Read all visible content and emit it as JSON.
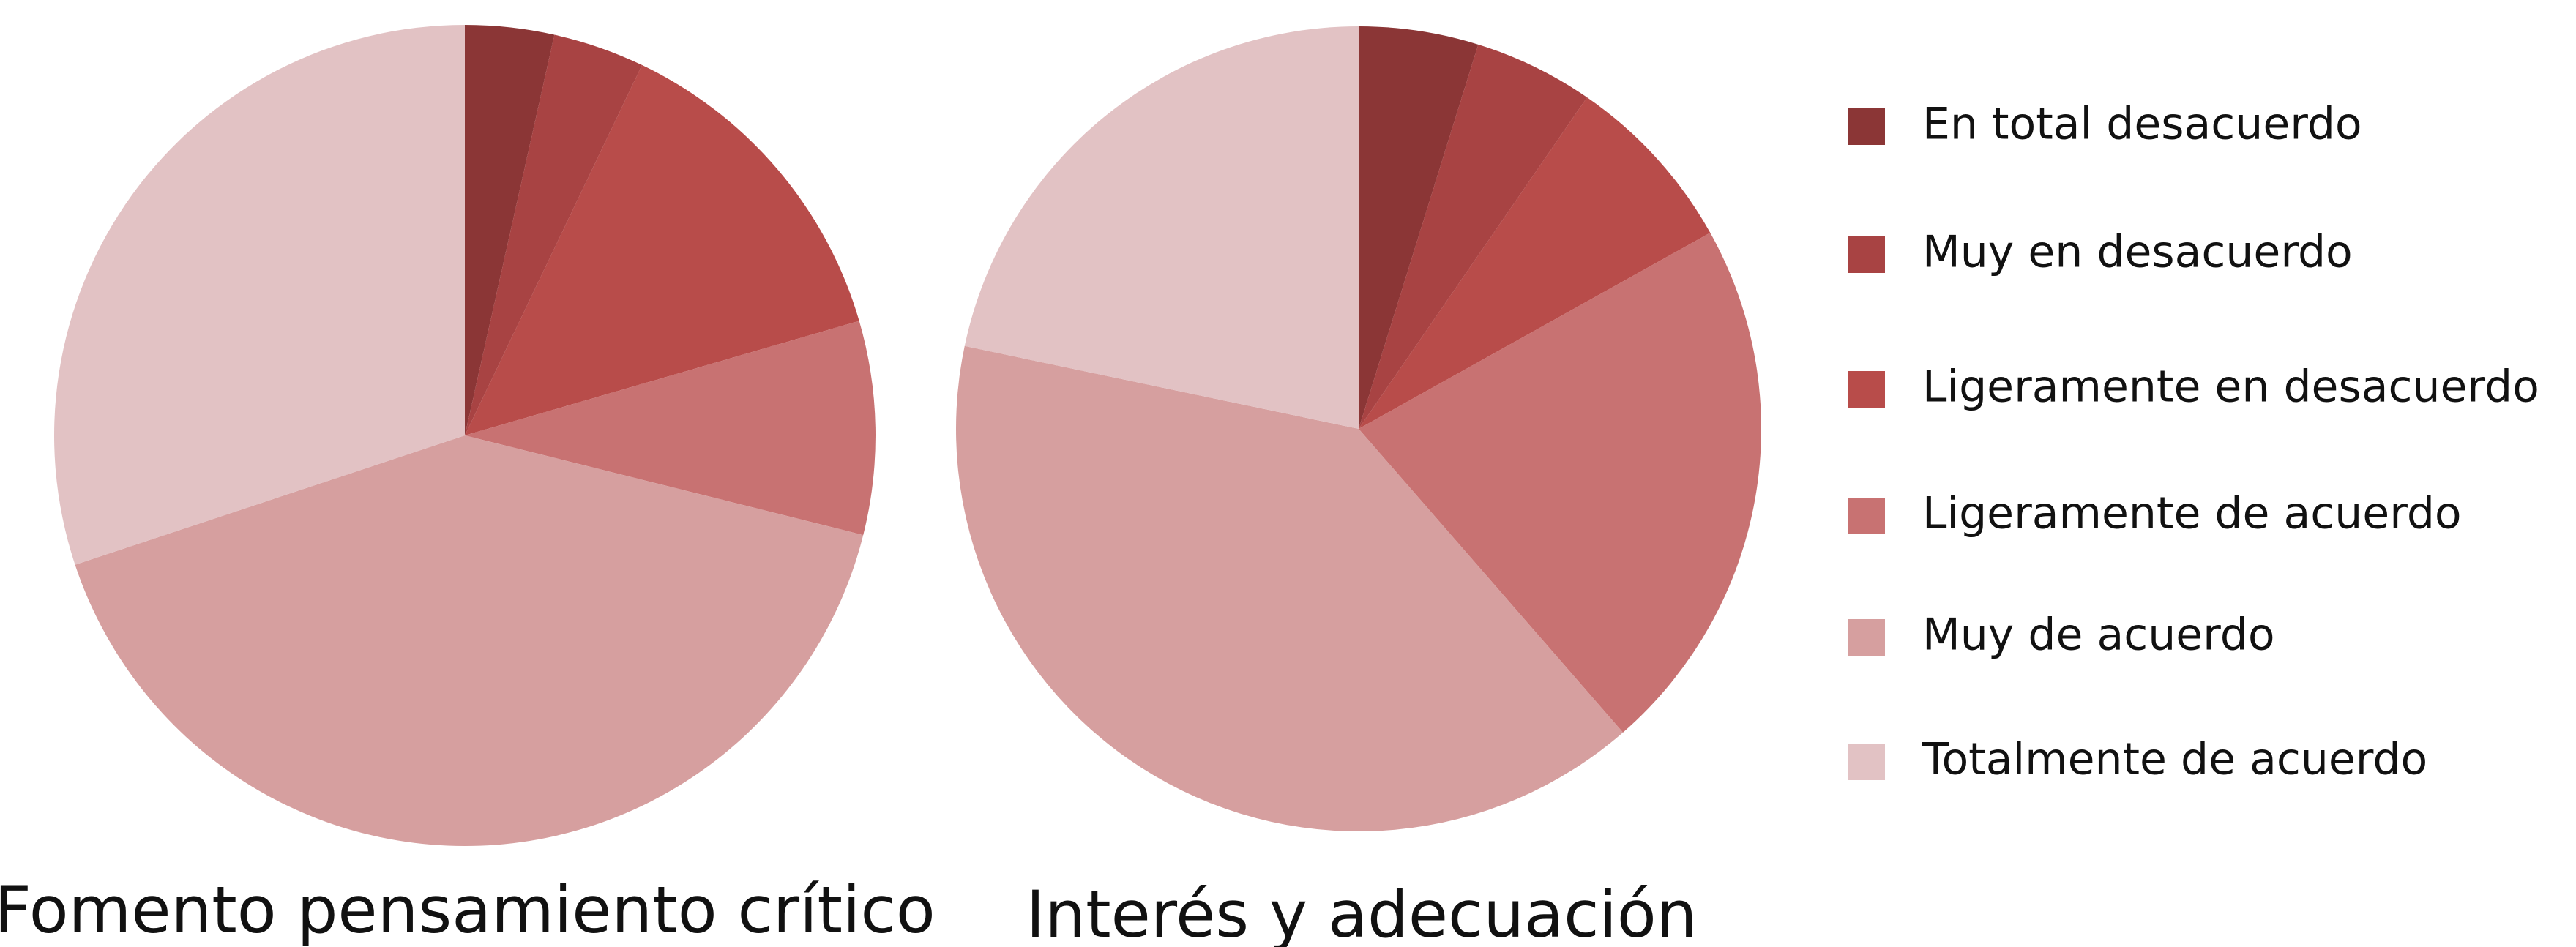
{
  "chart_data": [
    {
      "type": "pie",
      "title": "Fomento pensamiento crítico",
      "categories": [
        "En total desacuerdo",
        "Muy en desacuerdo",
        "Ligeramente en desacuerdo",
        "Ligeramente de acuerdo",
        "Muy de acuerdo",
        "Totalmente de acuerdo"
      ],
      "values": [
        3.5,
        3.6,
        13.4,
        8.4,
        41,
        30.1
      ],
      "colors": [
        "#8b3636",
        "#a84343",
        "#b84c4a",
        "#c87272",
        "#d69f9f",
        "#e2c2c4"
      ],
      "legend": "right"
    },
    {
      "type": "pie",
      "title": "Interés y adecuación",
      "categories": [
        "En total desacuerdo",
        "Muy en desacuerdo",
        "Ligeramente en desacuerdo",
        "Ligeramente de acuerdo",
        "Muy de acuerdo",
        "Totalmente de acuerdo"
      ],
      "values": [
        4.8,
        4.8,
        7.3,
        21.7,
        39.7,
        21.7
      ],
      "colors": [
        "#8b3636",
        "#a84343",
        "#b84c4a",
        "#c87272",
        "#d69f9f",
        "#e2c2c4"
      ]
    }
  ]
}
